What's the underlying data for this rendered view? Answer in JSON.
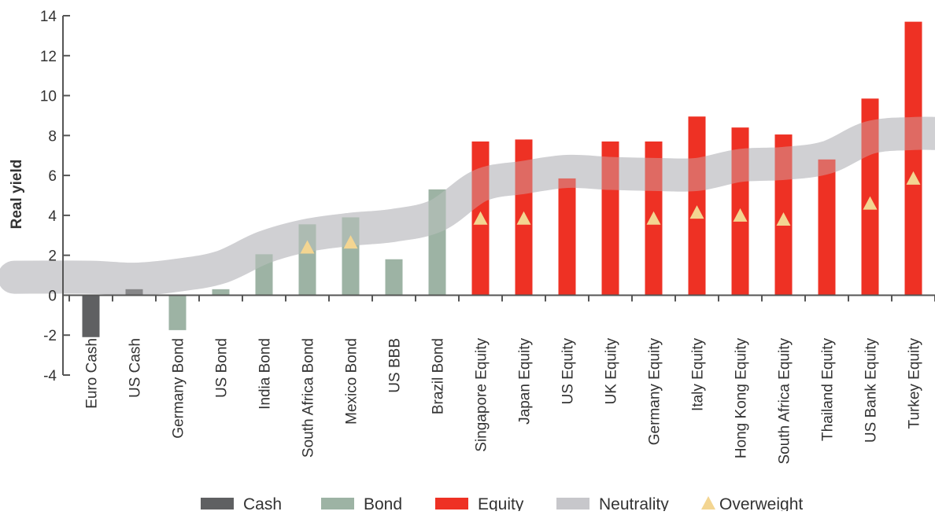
{
  "chart_data": {
    "type": "bar",
    "title": "",
    "xlabel": "",
    "ylabel": "Real yield",
    "ylim": [
      -4,
      14
    ],
    "yticks": [
      14,
      12,
      10,
      8,
      6,
      4,
      2,
      0,
      -2,
      -4
    ],
    "grid": false,
    "legend_position": "bottom",
    "categories": [
      "Euro Cash",
      "US Cash",
      "Germany Bond",
      "US Bond",
      "India Bond",
      "South Africa Bond",
      "Mexico Bond",
      "US BBB",
      "Brazil Bond",
      "Singapore Equity",
      "Japan Equity",
      "US Equity",
      "UK Equity",
      "Germany Equity",
      "Italy Equity",
      "Hong Kong Equity",
      "South Africa Equity",
      "Thailand Equity",
      "US Bank Equity",
      "Turkey Equity"
    ],
    "values": [
      -2.1,
      0.3,
      -1.75,
      0.3,
      2.05,
      3.55,
      3.9,
      1.8,
      5.3,
      7.7,
      7.8,
      5.85,
      7.7,
      7.7,
      8.95,
      8.4,
      8.05,
      6.8,
      9.85,
      13.7
    ],
    "asset_class": [
      "Cash",
      "Cash",
      "Bond",
      "Bond",
      "Bond",
      "Bond",
      "Bond",
      "Bond",
      "Bond",
      "Equity",
      "Equity",
      "Equity",
      "Equity",
      "Equity",
      "Equity",
      "Equity",
      "Equity",
      "Equity",
      "Equity",
      "Equity"
    ],
    "overweight": [
      null,
      null,
      null,
      null,
      null,
      2.4,
      2.65,
      null,
      null,
      3.85,
      3.85,
      null,
      null,
      3.85,
      4.15,
      4.0,
      3.8,
      null,
      4.6,
      5.85
    ],
    "neutrality_band": [
      [
        0.9,
        0.8,
        1.0,
        1.4,
        2.4,
        3.0,
        3.3,
        3.5,
        4.0,
        5.5,
        5.9,
        6.2,
        6.1,
        6.05,
        6.05,
        6.5,
        6.6,
        6.9,
        7.9,
        8.1
      ],
      [
        0.9,
        0.8,
        1.0,
        1.4,
        2.4,
        3.0,
        3.3,
        3.5,
        4.0,
        5.5,
        5.9,
        6.2,
        6.1,
        6.05,
        6.05,
        6.5,
        6.6,
        6.9,
        7.9,
        8.1
      ]
    ],
    "legend": [
      {
        "key": "Cash",
        "label": "Cash",
        "color": "#5f6062",
        "marker": "rect"
      },
      {
        "key": "Bond",
        "label": "Bond",
        "color": "#9db3a4",
        "marker": "rect"
      },
      {
        "key": "Equity",
        "label": "Equity",
        "color": "#ee3124",
        "marker": "rect"
      },
      {
        "key": "Neutrality",
        "label": "Neutrality",
        "color": "#c7c7cb",
        "marker": "rect"
      },
      {
        "key": "Overweight",
        "label": "Overweight",
        "color": "#f3d591",
        "marker": "triangle"
      }
    ],
    "colors": {
      "Cash": "#5f6062",
      "Bond": "#9db3a4",
      "Equity": "#ee3124",
      "Neutrality": "#c7c7cb",
      "Overweight": "#f3d591",
      "axis": "#555555"
    }
  }
}
